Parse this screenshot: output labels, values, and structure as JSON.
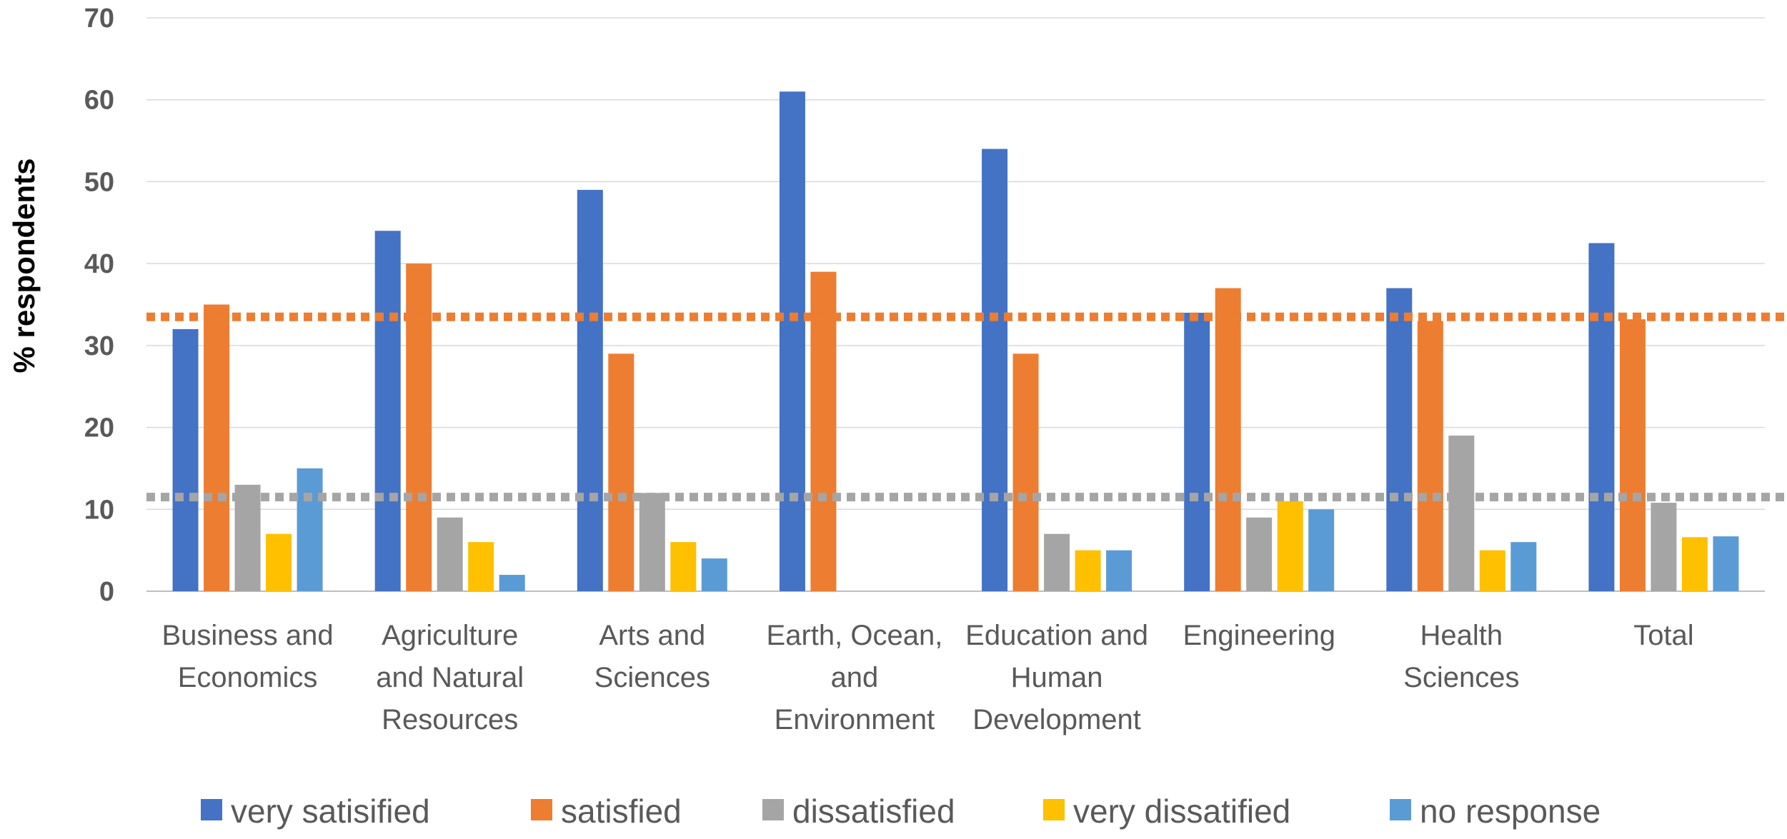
{
  "chart_data": {
    "type": "bar",
    "title": "",
    "xlabel": "",
    "ylabel": "% respondents",
    "ylim": [
      0,
      70
    ],
    "yticks": [
      0,
      10,
      20,
      30,
      40,
      50,
      60,
      70
    ],
    "grid": true,
    "legend_position": "bottom",
    "categories": [
      [
        "Business and",
        "Economics"
      ],
      [
        "Agriculture",
        "and Natural",
        "Resources"
      ],
      [
        "Arts and",
        "Sciences"
      ],
      [
        "Earth, Ocean,",
        "and",
        "Environment"
      ],
      [
        "Education and",
        "Human",
        "Development"
      ],
      [
        "Engineering"
      ],
      [
        "Health",
        "Sciences"
      ],
      [
        "Total"
      ]
    ],
    "series": [
      {
        "name": "very satisified",
        "color": "#4472C4",
        "values": [
          32,
          44,
          49,
          61,
          54,
          34,
          37,
          42.5
        ]
      },
      {
        "name": "satisfied",
        "color": "#ED7D31",
        "values": [
          35,
          40,
          29,
          39,
          29,
          37,
          33,
          33.2
        ]
      },
      {
        "name": "dissatisfied",
        "color": "#A5A5A5",
        "values": [
          13,
          9,
          12,
          0,
          7,
          9,
          19,
          10.8
        ]
      },
      {
        "name": "very dissatified",
        "color": "#FFC000",
        "values": [
          7,
          6,
          6,
          0,
          5,
          11,
          5,
          6.6
        ]
      },
      {
        "name": "no response",
        "color": "#5B9BD5",
        "values": [
          15,
          2,
          4,
          0,
          5,
          10,
          6,
          6.7
        ]
      }
    ],
    "reference_lines": [
      {
        "value": 33.5,
        "color": "#ED7D31",
        "style": "dotted"
      },
      {
        "value": 11.5,
        "color": "#A5A5A5",
        "style": "dotted"
      }
    ]
  }
}
